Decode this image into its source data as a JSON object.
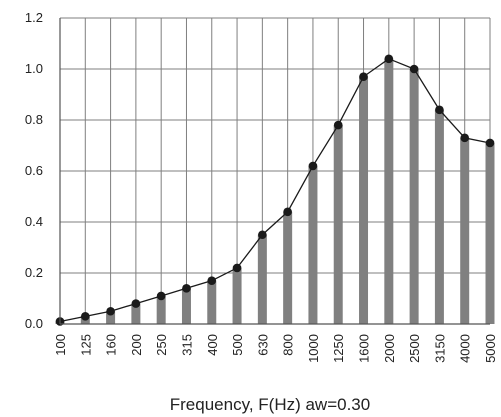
{
  "chart_data": {
    "type": "bar",
    "categories": [
      "100",
      "125",
      "160",
      "200",
      "250",
      "315",
      "400",
      "500",
      "630",
      "800",
      "1000",
      "1250",
      "1600",
      "2000",
      "2500",
      "3150",
      "4000",
      "5000"
    ],
    "series": [
      {
        "values": [
          0.01,
          0.03,
          0.05,
          0.08,
          0.11,
          0.14,
          0.17,
          0.22,
          0.35,
          0.44,
          0.62,
          0.78,
          0.97,
          1.04,
          1.0,
          0.84,
          0.73,
          0.71
        ]
      }
    ],
    "line_overlay": true,
    "title": "",
    "xlabel": "Frequency, F(Hz) aw=0.30",
    "ylabel": "",
    "ylim": [
      0,
      1.2
    ],
    "yticks": [
      "0.0",
      "0.2",
      "0.4",
      "0.6",
      "0.8",
      "1.0",
      "1.2"
    ],
    "grid": true,
    "colors": {
      "bar": "#808080",
      "line": "#1a1a1a",
      "marker": "#1a1a1a",
      "grid": "#7f7f7f",
      "axis": "#555555"
    }
  }
}
